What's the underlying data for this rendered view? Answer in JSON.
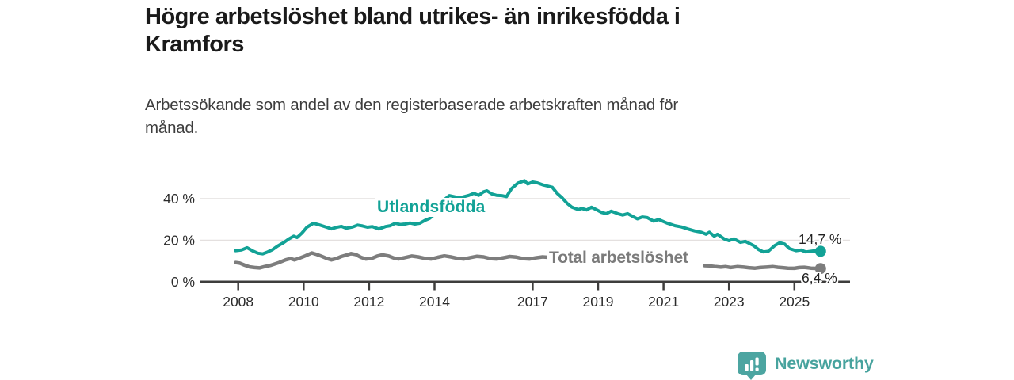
{
  "header": {
    "title_lines": [
      "Högre arbetslöshet bland utrikes- än inrikesfödda i",
      "Kramfors"
    ],
    "subtitle_lines": [
      "Arbetssökande som andel av den registerbaserade arbetskraften månad för",
      "månad."
    ]
  },
  "chart_data": {
    "type": "line",
    "title": "Högre arbetslöshet bland utrikes- än inrikesfödda i Kramfors",
    "xlabel": "",
    "ylabel": "",
    "unit": "%",
    "grid": "horizontal",
    "legend_position": "inline-labels",
    "xlim": [
      2006.85,
      2026.5
    ],
    "ylim": [
      0,
      51.8
    ],
    "x_ticks": [
      {
        "value": 2008,
        "label": "2008"
      },
      {
        "value": 2010,
        "label": "2010"
      },
      {
        "value": 2012,
        "label": "2012"
      },
      {
        "value": 2014,
        "label": "2014"
      },
      {
        "value": 2017,
        "label": "2017"
      },
      {
        "value": 2019,
        "label": "2019"
      },
      {
        "value": 2021,
        "label": "2021"
      },
      {
        "value": 2023,
        "label": "2023"
      },
      {
        "value": 2025,
        "label": "2025"
      }
    ],
    "y_ticks": [
      {
        "value": 0,
        "label": "0 %"
      },
      {
        "value": 20,
        "label": "20 %"
      },
      {
        "value": 40,
        "label": "40 %"
      }
    ],
    "series": [
      {
        "id": "utlandsfodda",
        "name": "Utlandsfödda",
        "color": "#12a296",
        "end_value": 14.7,
        "end_label": "14,7 %",
        "segments": [
          [
            [
              2007.92,
              15.0
            ],
            [
              2008.1,
              15.3
            ],
            [
              2008.27,
              16.4
            ],
            [
              2008.45,
              14.8
            ],
            [
              2008.6,
              13.8
            ],
            [
              2008.75,
              13.5
            ],
            [
              2008.9,
              14.4
            ],
            [
              2009.05,
              15.5
            ],
            [
              2009.2,
              17.2
            ],
            [
              2009.4,
              19.0
            ],
            [
              2009.55,
              20.7
            ],
            [
              2009.7,
              22.0
            ],
            [
              2009.8,
              21.3
            ],
            [
              2009.95,
              23.5
            ],
            [
              2010.1,
              26.3
            ],
            [
              2010.3,
              28.2
            ],
            [
              2010.5,
              27.3
            ],
            [
              2010.7,
              26.3
            ],
            [
              2010.85,
              25.5
            ],
            [
              2011.0,
              26.2
            ],
            [
              2011.15,
              26.7
            ],
            [
              2011.3,
              25.8
            ],
            [
              2011.5,
              26.4
            ],
            [
              2011.65,
              27.3
            ],
            [
              2011.8,
              26.9
            ],
            [
              2011.95,
              26.3
            ],
            [
              2012.1,
              26.6
            ],
            [
              2012.3,
              25.4
            ],
            [
              2012.5,
              26.6
            ],
            [
              2012.65,
              27.0
            ],
            [
              2012.8,
              28.2
            ],
            [
              2012.95,
              27.6
            ],
            [
              2013.1,
              27.8
            ],
            [
              2013.25,
              28.3
            ],
            [
              2013.4,
              27.8
            ],
            [
              2013.55,
              28.2
            ],
            [
              2013.7,
              29.5
            ],
            [
              2013.85,
              30.5
            ],
            [
              2014.0,
              32.5
            ],
            [
              2014.15,
              36.0
            ],
            [
              2014.3,
              39.5
            ],
            [
              2014.45,
              41.5
            ],
            [
              2014.6,
              41.0
            ],
            [
              2014.75,
              40.3
            ],
            [
              2014.9,
              41.0
            ],
            [
              2015.05,
              41.6
            ],
            [
              2015.2,
              42.6
            ],
            [
              2015.35,
              41.6
            ],
            [
              2015.5,
              43.3
            ],
            [
              2015.6,
              43.8
            ],
            [
              2015.75,
              42.3
            ],
            [
              2015.9,
              41.6
            ],
            [
              2016.05,
              41.5
            ],
            [
              2016.2,
              41.0
            ],
            [
              2016.35,
              44.8
            ],
            [
              2016.55,
              47.5
            ],
            [
              2016.75,
              48.6
            ],
            [
              2016.85,
              47.1
            ],
            [
              2017.0,
              48.0
            ],
            [
              2017.15,
              47.6
            ],
            [
              2017.3,
              46.7
            ],
            [
              2017.45,
              46.1
            ],
            [
              2017.6,
              45.5
            ],
            [
              2017.75,
              42.5
            ],
            [
              2017.9,
              40.4
            ],
            [
              2018.05,
              37.8
            ],
            [
              2018.2,
              35.9
            ],
            [
              2018.4,
              34.7
            ],
            [
              2018.5,
              35.3
            ],
            [
              2018.65,
              34.6
            ],
            [
              2018.8,
              35.9
            ],
            [
              2018.95,
              34.7
            ],
            [
              2019.1,
              33.4
            ],
            [
              2019.25,
              32.8
            ],
            [
              2019.4,
              34.0
            ],
            [
              2019.6,
              32.8
            ],
            [
              2019.75,
              32.1
            ],
            [
              2019.9,
              32.8
            ],
            [
              2020.05,
              31.5
            ],
            [
              2020.2,
              30.3
            ],
            [
              2020.35,
              31.2
            ],
            [
              2020.5,
              30.9
            ],
            [
              2020.7,
              29.2
            ],
            [
              2020.85,
              30.0
            ],
            [
              2021.1,
              28.3
            ],
            [
              2021.35,
              27.0
            ],
            [
              2021.55,
              26.4
            ],
            [
              2021.75,
              25.4
            ],
            [
              2021.95,
              24.5
            ],
            [
              2022.15,
              23.9
            ],
            [
              2022.3,
              22.9
            ],
            [
              2022.4,
              23.9
            ],
            [
              2022.55,
              22.0
            ],
            [
              2022.65,
              22.9
            ],
            [
              2022.85,
              20.7
            ],
            [
              2023.0,
              19.8
            ],
            [
              2023.15,
              20.7
            ],
            [
              2023.35,
              19.0
            ],
            [
              2023.5,
              19.5
            ],
            [
              2023.75,
              17.5
            ],
            [
              2023.9,
              15.6
            ],
            [
              2024.05,
              14.4
            ],
            [
              2024.2,
              14.7
            ],
            [
              2024.4,
              17.5
            ],
            [
              2024.55,
              18.8
            ],
            [
              2024.7,
              18.2
            ],
            [
              2024.85,
              16.0
            ],
            [
              2025.05,
              15.0
            ],
            [
              2025.2,
              15.3
            ],
            [
              2025.35,
              14.4
            ],
            [
              2025.6,
              14.9
            ],
            [
              2025.8,
              14.7
            ]
          ]
        ]
      },
      {
        "id": "total",
        "name": "Total arbetslöshet",
        "color": "#7d7d7d",
        "end_value": 6.4,
        "end_label": "6,4 %",
        "segments": [
          [
            [
              2007.92,
              9.3
            ],
            [
              2008.05,
              9.0
            ],
            [
              2008.2,
              8.0
            ],
            [
              2008.35,
              7.2
            ],
            [
              2008.5,
              6.9
            ],
            [
              2008.65,
              6.7
            ],
            [
              2008.8,
              7.3
            ],
            [
              2009.0,
              8.0
            ],
            [
              2009.25,
              9.3
            ],
            [
              2009.45,
              10.6
            ],
            [
              2009.6,
              11.2
            ],
            [
              2009.72,
              10.6
            ],
            [
              2009.87,
              11.4
            ],
            [
              2010.05,
              12.5
            ],
            [
              2010.25,
              13.9
            ],
            [
              2010.4,
              13.2
            ],
            [
              2010.55,
              12.3
            ],
            [
              2010.7,
              11.3
            ],
            [
              2010.85,
              10.6
            ],
            [
              2011.0,
              11.2
            ],
            [
              2011.15,
              12.2
            ],
            [
              2011.35,
              13.1
            ],
            [
              2011.45,
              13.6
            ],
            [
              2011.6,
              13.1
            ],
            [
              2011.75,
              11.8
            ],
            [
              2011.9,
              11.0
            ],
            [
              2012.1,
              11.4
            ],
            [
              2012.25,
              12.4
            ],
            [
              2012.4,
              13.0
            ],
            [
              2012.6,
              12.4
            ],
            [
              2012.75,
              11.5
            ],
            [
              2012.9,
              11.0
            ],
            [
              2013.1,
              11.7
            ],
            [
              2013.3,
              12.4
            ],
            [
              2013.5,
              12.0
            ],
            [
              2013.7,
              11.3
            ],
            [
              2013.9,
              11.0
            ],
            [
              2014.1,
              11.8
            ],
            [
              2014.3,
              12.5
            ],
            [
              2014.5,
              12.0
            ],
            [
              2014.7,
              11.3
            ],
            [
              2014.9,
              11.0
            ],
            [
              2015.1,
              11.7
            ],
            [
              2015.3,
              12.3
            ],
            [
              2015.5,
              12.0
            ],
            [
              2015.7,
              11.2
            ],
            [
              2015.9,
              11.0
            ],
            [
              2016.1,
              11.6
            ],
            [
              2016.3,
              12.2
            ],
            [
              2016.5,
              11.9
            ],
            [
              2016.7,
              11.2
            ],
            [
              2016.9,
              11.0
            ],
            [
              2017.1,
              11.6
            ],
            [
              2017.3,
              12.0
            ],
            [
              2017.55,
              11.7
            ]
          ],
          [
            [
              2022.25,
              7.8
            ],
            [
              2022.4,
              7.7
            ],
            [
              2022.6,
              7.3
            ],
            [
              2022.75,
              7.1
            ],
            [
              2022.9,
              7.3
            ],
            [
              2023.05,
              6.9
            ],
            [
              2023.25,
              7.3
            ],
            [
              2023.45,
              7.1
            ],
            [
              2023.6,
              6.8
            ],
            [
              2023.8,
              6.6
            ],
            [
              2023.95,
              6.9
            ],
            [
              2024.15,
              7.1
            ],
            [
              2024.35,
              7.3
            ],
            [
              2024.5,
              7.0
            ],
            [
              2024.65,
              6.8
            ],
            [
              2024.8,
              6.6
            ],
            [
              2025.0,
              6.5
            ],
            [
              2025.15,
              6.9
            ],
            [
              2025.3,
              7.0
            ],
            [
              2025.5,
              6.6
            ],
            [
              2025.8,
              6.4
            ]
          ]
        ]
      }
    ],
    "style": {
      "grid_color": "#e4e0df",
      "axis_color": "#3e3d3c",
      "tick_label_color": "#2b2b2b"
    }
  },
  "footer": {
    "brand": "Newsworthy",
    "brand_color": "#47a39e",
    "logo_icon": "newsworthy-bar-chart-bubble"
  }
}
